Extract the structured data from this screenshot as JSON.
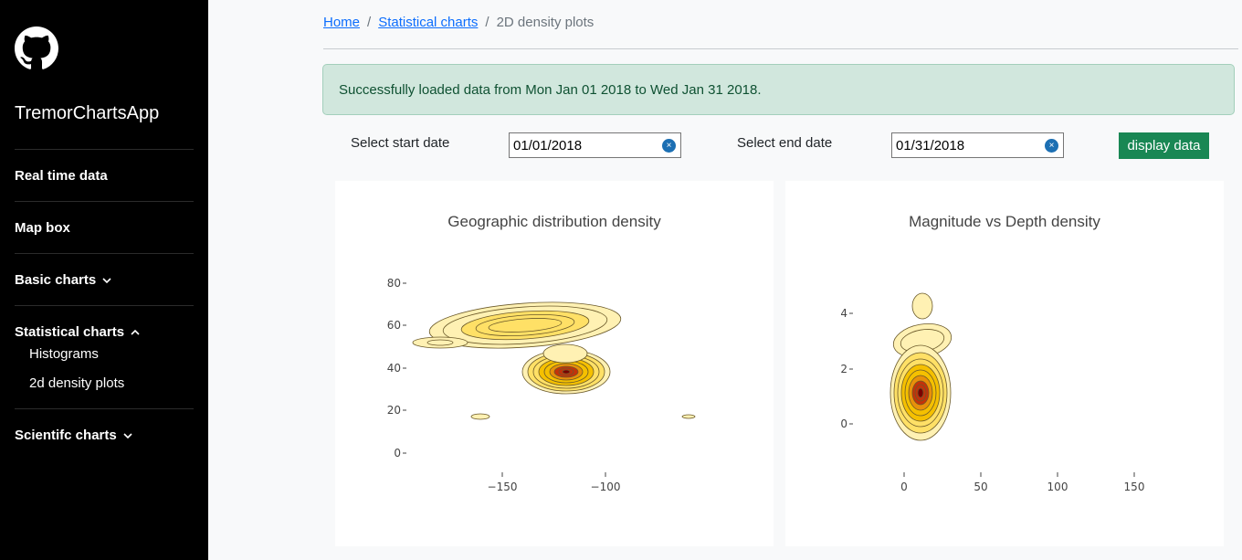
{
  "sidebar": {
    "brand": "TremorChartsApp",
    "logo_icon": "github-icon",
    "items": {
      "real_time": "Real time data",
      "map_box": "Map box",
      "basic": "Basic charts",
      "statistical": "Statistical charts",
      "histograms": "Histograms",
      "density": "2d density plots",
      "scientific": "Scientifc charts"
    }
  },
  "breadcrumb": {
    "home": "Home",
    "sep1": "/",
    "statistical": "Statistical charts",
    "sep2": "/",
    "current": "2D density plots"
  },
  "alert": {
    "text": "Successfully loaded data from Mon Jan 01 2018 to Wed Jan 31 2018."
  },
  "filters": {
    "start_label": "Select start date",
    "start_value": "01/01/2018",
    "end_label": "Select end date",
    "end_value": "01/31/2018",
    "clear_glyph": "×",
    "button_label": "display data"
  },
  "colors": {
    "sidebar_bg": "#000000",
    "alert_bg": "#d1e7dd",
    "button_bg": "#198754",
    "link": "#0d6efd",
    "density_scale": [
      "#fff1b3",
      "#ffe066",
      "#f5c000",
      "#e8900a",
      "#c4320a",
      "#7a0000"
    ]
  },
  "chart_data": [
    {
      "type": "heatmap",
      "title": "Geographic distribution density",
      "xlabel": "",
      "ylabel": "",
      "x_ticks": [
        "−150",
        "−100"
      ],
      "y_ticks": [
        "0",
        "20",
        "40",
        "60",
        "80"
      ],
      "xlim": [
        -185,
        -50
      ],
      "ylim": [
        -5,
        90
      ],
      "clusters": [
        {
          "x": -155,
          "y": 60
        },
        {
          "x": -120,
          "y": 38
        },
        {
          "x": -120,
          "y": 45
        },
        {
          "x": -170,
          "y": 52
        },
        {
          "x": -162,
          "y": 17
        },
        {
          "x": -64,
          "y": 17
        }
      ]
    },
    {
      "type": "heatmap",
      "title": "Magnitude vs Depth density",
      "xlabel": "",
      "ylabel": "",
      "x_ticks": [
        "0",
        "50",
        "100",
        "150"
      ],
      "y_ticks": [
        "0",
        "2",
        "4"
      ],
      "xlim": [
        -20,
        160
      ],
      "ylim": [
        -1,
        5
      ],
      "clusters": [
        {
          "x": 10,
          "y": 1.0
        },
        {
          "x": 15,
          "y": 3.2
        },
        {
          "x": 12,
          "y": 4.3
        }
      ]
    }
  ]
}
